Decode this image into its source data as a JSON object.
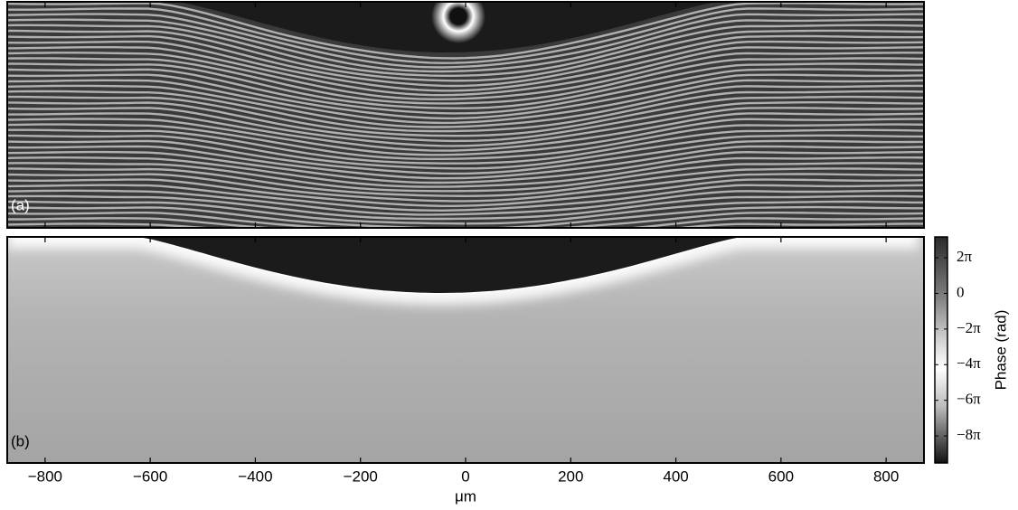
{
  "chart_data": [
    {
      "type": "interferogram",
      "panel_label": "(a)",
      "xlim": [
        -872,
        872
      ]
    },
    {
      "type": "phase-map",
      "panel_label": "(b)",
      "xlim": [
        -872,
        872
      ],
      "xticks": [
        {
          "value": -800,
          "label": "−800"
        },
        {
          "value": -600,
          "label": "−600"
        },
        {
          "value": -400,
          "label": "−400"
        },
        {
          "value": -200,
          "label": "−200"
        },
        0,
        200,
        400,
        600,
        800
      ],
      "xlabel": "μm",
      "colorbar": {
        "label": "Phase (rad)",
        "lim": [
          -29.9,
          9.96
        ],
        "ticks": [
          {
            "value": 6.2832,
            "label": "2π"
          },
          0,
          {
            "value": -6.2832,
            "label": "−2π"
          },
          {
            "value": -12.566,
            "label": "−4π"
          },
          {
            "value": -18.85,
            "label": "−6π"
          },
          {
            "value": -25.133,
            "label": "−8π"
          }
        ]
      }
    }
  ]
}
